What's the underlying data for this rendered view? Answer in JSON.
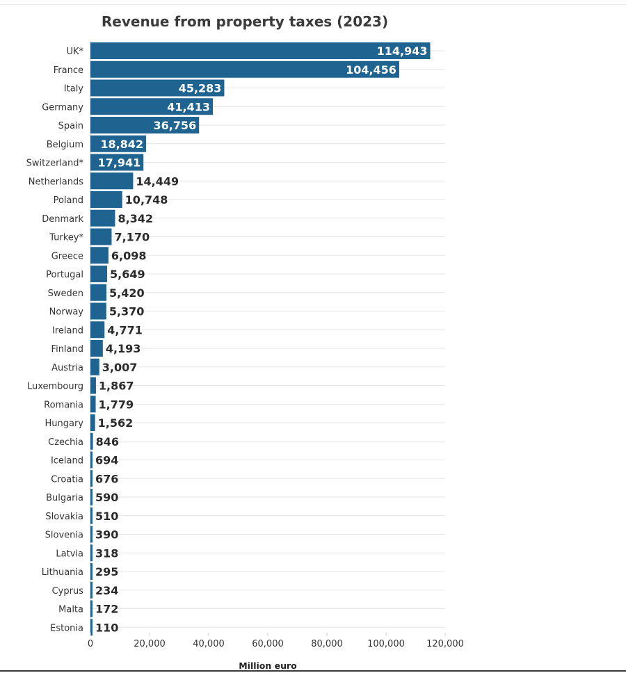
{
  "chart_data": {
    "type": "bar",
    "orientation": "horizontal",
    "title": "Revenue from property taxes (2023)",
    "xlabel": "Million euro",
    "ylabel": "",
    "xlim": [
      0,
      120000
    ],
    "ticks": [
      0,
      20000,
      40000,
      60000,
      80000,
      100000,
      120000
    ],
    "tick_labels": [
      "0",
      "20,000",
      "40,000",
      "60,000",
      "80,000",
      "100,000",
      "120,000"
    ],
    "grid": true,
    "bar_color": "#1f6391",
    "categories": [
      "UK*",
      "France",
      "Italy",
      "Germany",
      "Spain",
      "Belgium",
      "Switzerland*",
      "Netherlands",
      "Poland",
      "Denmark",
      "Turkey*",
      "Greece",
      "Portugal",
      "Sweden",
      "Norway",
      "Ireland",
      "Finland",
      "Austria",
      "Luxembourg",
      "Romania",
      "Hungary",
      "Czechia",
      "Iceland",
      "Croatia",
      "Bulgaria",
      "Slovakia",
      "Slovenia",
      "Latvia",
      "Lithuania",
      "Cyprus",
      "Malta",
      "Estonia"
    ],
    "values": [
      114943,
      104456,
      45283,
      41413,
      36756,
      18842,
      17941,
      14449,
      10748,
      8342,
      7170,
      6098,
      5649,
      5420,
      5370,
      4771,
      4193,
      3007,
      1867,
      1779,
      1562,
      846,
      694,
      676,
      590,
      510,
      390,
      318,
      295,
      234,
      172,
      110
    ],
    "value_labels": [
      "114,943",
      "104,456",
      "45,283",
      "41,413",
      "36,756",
      "18,842",
      "17,941",
      "14,449",
      "10,748",
      "8,342",
      "7,170",
      "6,098",
      "5,649",
      "5,420",
      "5,370",
      "4,771",
      "4,193",
      "3,007",
      "1,867",
      "1,779",
      "1,562",
      "846",
      "694",
      "676",
      "590",
      "510",
      "390",
      "318",
      "295",
      "234",
      "172",
      "110"
    ]
  }
}
